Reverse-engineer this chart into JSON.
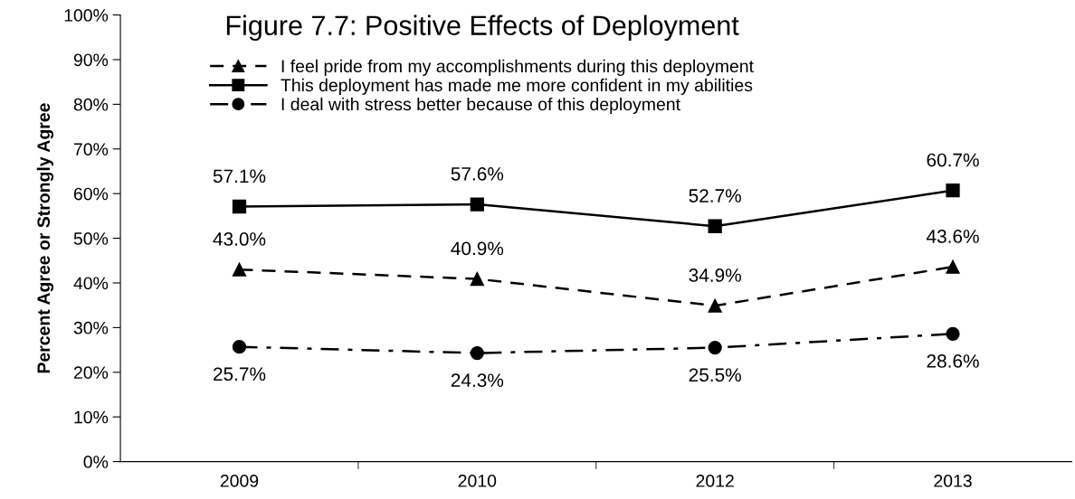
{
  "chart_data": {
    "type": "line",
    "title": "Figure 7.7: Positive Effects of Deployment",
    "ylabel": "Percent Agree or Strongly Agree",
    "categories": [
      "2009",
      "2010",
      "2012",
      "2013"
    ],
    "series": [
      {
        "name": "I feel pride from my accomplishments during this deployment",
        "color": "#000000",
        "marker": "triangle",
        "line_style": "dashed",
        "values": [
          43.0,
          40.9,
          34.9,
          43.6
        ],
        "value_labels": [
          "43.0%",
          "40.9%",
          "34.9%",
          "43.6%"
        ]
      },
      {
        "name": "This deployment has made me more confident in my abilities",
        "color": "#000000",
        "marker": "square",
        "line_style": "solid",
        "values": [
          57.1,
          57.6,
          52.7,
          60.7
        ],
        "value_labels": [
          "57.1%",
          "57.6%",
          "52.7%",
          "60.7%"
        ]
      },
      {
        "name": "I deal with stress better because of this deployment",
        "color": "#000000",
        "marker": "circle",
        "line_style": "dashdot",
        "values": [
          25.7,
          24.3,
          25.5,
          28.6
        ],
        "value_labels": [
          "25.7%",
          "24.3%",
          "25.5%",
          "28.6%"
        ]
      }
    ],
    "ylim": [
      0,
      100
    ],
    "yticks": [
      {
        "value": 0,
        "label": "0%"
      },
      {
        "value": 10,
        "label": "10%"
      },
      {
        "value": 20,
        "label": "20%"
      },
      {
        "value": 30,
        "label": "30%"
      },
      {
        "value": 40,
        "label": "40%"
      },
      {
        "value": 50,
        "label": "50%"
      },
      {
        "value": 60,
        "label": "60%"
      },
      {
        "value": 70,
        "label": "70%"
      },
      {
        "value": 80,
        "label": "80%"
      },
      {
        "value": 90,
        "label": "90%"
      },
      {
        "value": 100,
        "label": "100%"
      }
    ],
    "grid": false,
    "legend": "top"
  }
}
